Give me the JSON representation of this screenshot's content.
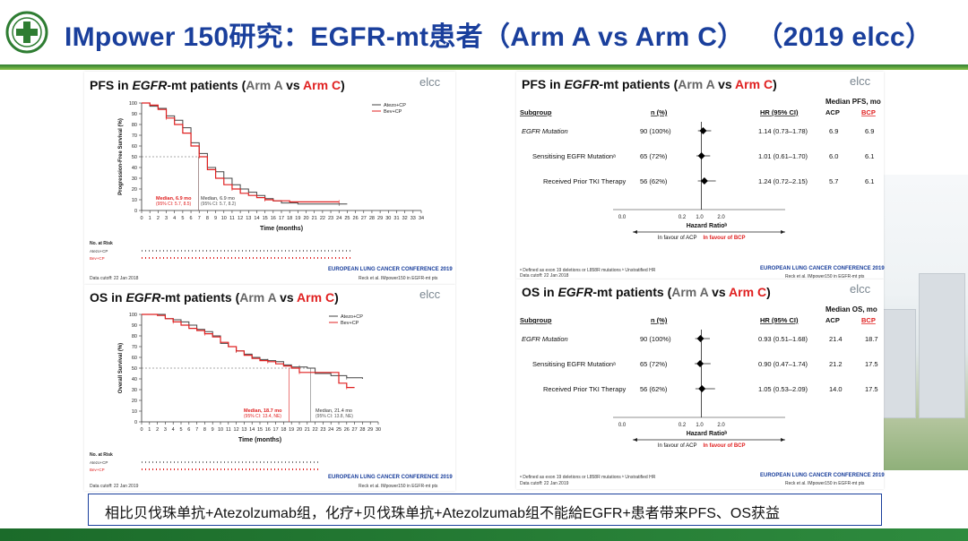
{
  "header": {
    "title": "IMpower 150研究：EGFR-mt患者（Arm A vs Arm C）",
    "year": "（2019 elcc）"
  },
  "bottom_caption": "相比贝伐珠单抗+Atezolzumab组，化疗+贝伐珠单抗+Atezolzumab组不能給EGFR+患者带来PFS、OS获益",
  "elcc_logo": "elcc",
  "conference": "EUROPEAN LUNG CANCER CONFERENCE 2019",
  "reck": "Reck et al. IMpower150 in EGFR-mt pts",
  "pfs_km": {
    "title_pre": "PFS in ",
    "title_egfr": "EGFR",
    "title_mid": "-mt patients (",
    "arm_a": "Arm A",
    "vs": " vs ",
    "arm_c": "Arm C",
    "close": ")",
    "legend": [
      "Atezo+CP",
      "Bev+CP"
    ],
    "ylabel": "Progression-Free Survival (%)",
    "xlabel": "Time (months)",
    "median_c_1": "Median, 6.9 mo",
    "median_c_2": "(95% CI: 5.7, 8.5)",
    "median_a_1": "Median, 6.9 mo",
    "median_a_2": "(95% CI: 5.7, 8.2)",
    "no_at_risk": "No. at Risk",
    "row_a": "Atezo+CP",
    "row_c": "Bev+CP",
    "cutoff": "Data cutoff: 22 Jan 2018"
  },
  "os_km": {
    "title_pre": "OS in ",
    "title_egfr": "EGFR",
    "title_mid": "-mt patients (",
    "arm_a": "Arm A",
    "vs": " vs ",
    "arm_c": "Arm C",
    "close": ")",
    "legend": [
      "Atezo+CP",
      "Bev+CP"
    ],
    "ylabel": "Overall Survival (%)",
    "xlabel": "Time (months)",
    "median_c_1": "Median, 18.7 mo",
    "median_c_2": "(95% CI: 13.4, NE)",
    "median_a_1": "Median, 21.4 mo",
    "median_a_2": "(95% CI: 13.8, NE)",
    "no_at_risk": "No. at Risk",
    "row_a": "Atezo+CP",
    "row_c": "Bev+CP",
    "cutoff": "Data cutoff: 22 Jan 2019"
  },
  "pfs_forest": {
    "title_pre": "PFS in ",
    "title_egfr": "EGFR",
    "title_mid": "-mt patients (",
    "arm_a": "Arm A",
    "vs": " vs ",
    "arm_c": "Arm C",
    "close": ")",
    "median_header": "Median PFS, mo",
    "col_subgroup": "Subgroup",
    "col_n": "n (%)",
    "col_hr": "HR (95% CI)",
    "col_acp": "ACP",
    "col_bcp": "BCP",
    "rows": [
      {
        "label": "EGFR Mutation",
        "n": "90 (100%)",
        "hr": "1.14 (0.73–1.78)",
        "acp": "6.9",
        "bcp": "6.9"
      },
      {
        "label": "Sensitising EGFR Mutationᵃ",
        "n": "65 (72%)",
        "hr": "1.01 (0.61–1.70)",
        "acp": "6.0",
        "bcp": "6.1"
      },
      {
        "label": "Received Prior TKI Therapy",
        "n": "56 (62%)",
        "hr": "1.24 (0.72–2.15)",
        "acp": "5.7",
        "bcp": "6.1"
      }
    ],
    "hr_label": "Hazard Ratioᵇ",
    "favour_acp": "In favour of ACP",
    "favour_bcp": "In favour of BCP",
    "footnote": "ᵃ Defined as exon 19 deletions or L858R mutations  ᵇ Unstratified HR",
    "cutoff": "Data cutoff: 22 Jan 2018"
  },
  "os_forest": {
    "title_pre": "OS in ",
    "title_egfr": "EGFR",
    "title_mid": "-mt patients (",
    "arm_a": "Arm A",
    "vs": " vs ",
    "arm_c": "Arm C",
    "close": ")",
    "median_header": "Median OS, mo",
    "col_subgroup": "Subgroup",
    "col_n": "n (%)",
    "col_hr": "HR (95% CI)",
    "col_acp": "ACP",
    "col_bcp": "BCP",
    "rows": [
      {
        "label": "EGFR Mutation",
        "n": "90 (100%)",
        "hr": "0.93 (0.51–1.68)",
        "acp": "21.4",
        "bcp": "18.7"
      },
      {
        "label": "Sensitising EGFR Mutationᵃ",
        "n": "65 (72%)",
        "hr": "0.90 (0.47–1.74)",
        "acp": "21.2",
        "bcp": "17.5"
      },
      {
        "label": "Received Prior TKI Therapy",
        "n": "56 (62%)",
        "hr": "1.05 (0.53–2.09)",
        "acp": "14.0",
        "bcp": "17.5"
      }
    ],
    "hr_label": "Hazard Ratioᵇ",
    "favour_acp": "In favour of ACP",
    "favour_bcp": "In favour of BCP",
    "footnote": "ᵃ Defined as exon 19 deletions or L858R mutations  ᵇ Unstratified HR",
    "cutoff": "Data cutoff: 22 Jan 2019"
  },
  "chart_data": [
    {
      "type": "line",
      "title": "PFS in EGFR-mt patients (Arm A vs Arm C)",
      "xlabel": "Time (months)",
      "ylabel": "Progression-Free Survival (%)",
      "xlim": [
        0,
        34
      ],
      "ylim": [
        0,
        100
      ],
      "x_ticks": [
        0,
        1,
        2,
        3,
        4,
        5,
        6,
        7,
        8,
        9,
        10,
        11,
        12,
        13,
        14,
        15,
        16,
        17,
        18,
        19,
        20,
        21,
        22,
        23,
        24,
        25,
        26,
        27,
        28,
        29,
        30,
        31,
        32,
        33,
        34
      ],
      "y_ticks": [
        0,
        10,
        20,
        30,
        40,
        50,
        60,
        70,
        80,
        90,
        100
      ],
      "legend_position": "top-right",
      "series": [
        {
          "name": "Atezo+CP",
          "color": "#444444",
          "points": [
            [
              0,
              100
            ],
            [
              1,
              97
            ],
            [
              2,
              95
            ],
            [
              3,
              88
            ],
            [
              4,
              84
            ],
            [
              5,
              77
            ],
            [
              6,
              63
            ],
            [
              7,
              53
            ],
            [
              8,
              40
            ],
            [
              9,
              36
            ],
            [
              10,
              30
            ],
            [
              11,
              24
            ],
            [
              12,
              20
            ],
            [
              13,
              17
            ],
            [
              14,
              14
            ],
            [
              15,
              11
            ],
            [
              16,
              9
            ],
            [
              17,
              7
            ],
            [
              19,
              6
            ],
            [
              24,
              6
            ],
            [
              25,
              6
            ]
          ]
        },
        {
          "name": "Bev+CP",
          "color": "#e02020",
          "points": [
            [
              0,
              100
            ],
            [
              1,
              98
            ],
            [
              2,
              94
            ],
            [
              3,
              86
            ],
            [
              4,
              80
            ],
            [
              5,
              72
            ],
            [
              6,
              60
            ],
            [
              7,
              50
            ],
            [
              8,
              38
            ],
            [
              9,
              30
            ],
            [
              10,
              24
            ],
            [
              11,
              20
            ],
            [
              12,
              16
            ],
            [
              13,
              14
            ],
            [
              14,
              12
            ],
            [
              15,
              10
            ],
            [
              16,
              9
            ],
            [
              17,
              9
            ],
            [
              18,
              8
            ],
            [
              24,
              8
            ]
          ]
        }
      ]
    },
    {
      "type": "line",
      "title": "OS in EGFR-mt patients (Arm A vs Arm C)",
      "xlabel": "Time (months)",
      "ylabel": "Overall Survival (%)",
      "xlim": [
        0,
        30
      ],
      "ylim": [
        0,
        100
      ],
      "x_ticks": [
        0,
        1,
        2,
        3,
        4,
        5,
        6,
        7,
        8,
        9,
        10,
        11,
        12,
        13,
        14,
        15,
        16,
        17,
        18,
        19,
        20,
        21,
        22,
        23,
        24,
        25,
        26,
        27,
        28,
        29,
        30
      ],
      "y_ticks": [
        0,
        10,
        20,
        30,
        40,
        50,
        60,
        70,
        80,
        90,
        100
      ],
      "legend_position": "top-right",
      "series": [
        {
          "name": "Atezo+CP",
          "color": "#444444",
          "points": [
            [
              0,
              100
            ],
            [
              2,
              100
            ],
            [
              3,
              96
            ],
            [
              4,
              95
            ],
            [
              5,
              93
            ],
            [
              6,
              90
            ],
            [
              7,
              86
            ],
            [
              8,
              84
            ],
            [
              9,
              80
            ],
            [
              10,
              73
            ],
            [
              11,
              70
            ],
            [
              12,
              66
            ],
            [
              13,
              63
            ],
            [
              14,
              60
            ],
            [
              15,
              58
            ],
            [
              16,
              57
            ],
            [
              17,
              56
            ],
            [
              18,
              53
            ],
            [
              19,
              51
            ],
            [
              20,
              51
            ],
            [
              21,
              50
            ],
            [
              22,
              45
            ],
            [
              24,
              43
            ],
            [
              26,
              41
            ],
            [
              27,
              41
            ],
            [
              28,
              40
            ]
          ]
        },
        {
          "name": "Bev+CP",
          "color": "#e02020",
          "points": [
            [
              0,
              100
            ],
            [
              2,
              99
            ],
            [
              3,
              96
            ],
            [
              4,
              93
            ],
            [
              5,
              90
            ],
            [
              6,
              87
            ],
            [
              7,
              85
            ],
            [
              8,
              82
            ],
            [
              9,
              79
            ],
            [
              10,
              74
            ],
            [
              11,
              70
            ],
            [
              12,
              66
            ],
            [
              13,
              62
            ],
            [
              14,
              59
            ],
            [
              15,
              57
            ],
            [
              16,
              56
            ],
            [
              17,
              54
            ],
            [
              18,
              52
            ],
            [
              19,
              50
            ],
            [
              20,
              46
            ],
            [
              22,
              46
            ],
            [
              24,
              46
            ],
            [
              25,
              36
            ],
            [
              26,
              32
            ],
            [
              27,
              32
            ]
          ]
        }
      ]
    },
    {
      "type": "scatter",
      "title": "PFS in EGFR-mt patients (Arm A vs Arm C)",
      "xlabel": "Hazard Ratioᵇ",
      "xlim": [
        0.0,
        2.0
      ],
      "x_ticks": [
        "0.0",
        "0.2",
        "1.0",
        "2.0"
      ],
      "categories": [
        "EGFR Mutation",
        "Sensitising EGFR Mutation",
        "Received Prior TKI Therapy"
      ],
      "hr": [
        1.14,
        1.01,
        1.24
      ],
      "ci_low": [
        0.73,
        0.61,
        0.72
      ],
      "ci_high": [
        1.78,
        1.7,
        2.15
      ]
    },
    {
      "type": "scatter",
      "title": "OS in EGFR-mt patients (Arm A vs Arm C)",
      "xlabel": "Hazard Ratioᵇ",
      "xlim": [
        0.0,
        2.0
      ],
      "x_ticks": [
        "0.0",
        "0.2",
        "1.0",
        "2.0"
      ],
      "categories": [
        "EGFR Mutation",
        "Sensitising EGFR Mutation",
        "Received Prior TKI Therapy"
      ],
      "hr": [
        0.93,
        0.9,
        1.05
      ],
      "ci_low": [
        0.51,
        0.47,
        0.53
      ],
      "ci_high": [
        1.68,
        1.74,
        2.09
      ]
    }
  ]
}
